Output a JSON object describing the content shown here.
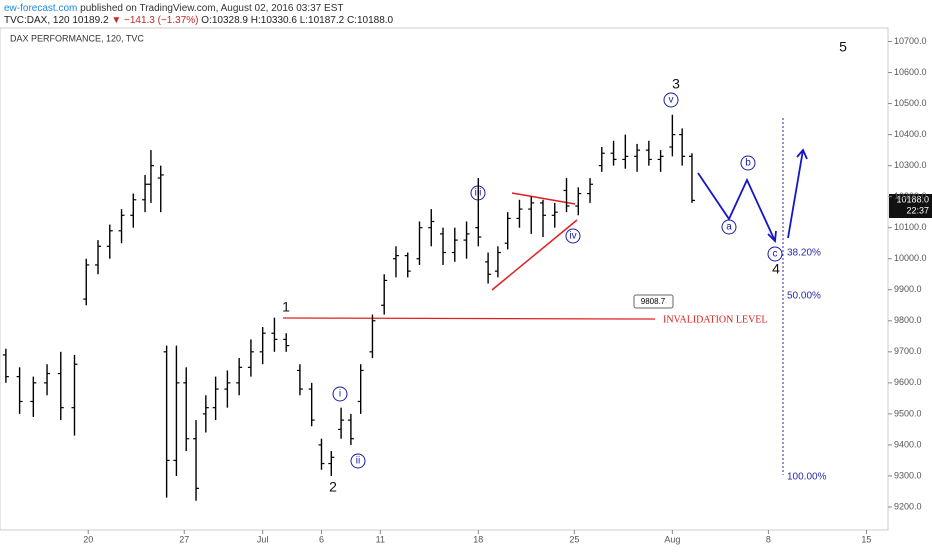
{
  "header": {
    "publisher": "ew-forecast.com",
    "published": "published on TradingView.com, August 02, 2016 03:37 EST",
    "symbol": "TVC:DAX, 120",
    "last": "10189.2",
    "change": "▼ −141.3 (−1.37%)",
    "ohlc": "O:10328.9 H:10330.6 L:10187.2 C:10188.0"
  },
  "chart_data": {
    "type": "ohlc",
    "title": "DAX PERFORMANCE, 120, TVC",
    "color": "#000000",
    "x": [
      0.3,
      1.0,
      1.7,
      2.4,
      3.1,
      3.8,
      4.4,
      5.0,
      5.6,
      6.2,
      6.8,
      7.4,
      7.7,
      8.2,
      8.5,
      9.0,
      9.5,
      10.0,
      10.5,
      11.0,
      11.6,
      12.2,
      12.8,
      13.4,
      14.0,
      14.6,
      15.3,
      15.9,
      16.4,
      16.9,
      17.4,
      17.9,
      18.4,
      19.0,
      19.6,
      20.2,
      20.8,
      21.4,
      22.0,
      22.6,
      23.2,
      23.8,
      24.4,
      24.9,
      25.4,
      25.9,
      26.5,
      27.1,
      27.7,
      28.3,
      28.9,
      29.5,
      30.1,
      30.7,
      31.3,
      31.9,
      32.5,
      33.1,
      33.7,
      34.3,
      34.8,
      35.3
    ],
    "open": [
      9690,
      9620,
      9540,
      9600,
      9630,
      9520,
      9870,
      9980,
      10040,
      10090,
      10140,
      10190,
      10240,
      10260,
      9700,
      9350,
      9600,
      9420,
      9500,
      9520,
      9580,
      9600,
      9650,
      9700,
      9760,
      9740,
      9640,
      9580,
      9400,
      9340,
      9450,
      9480,
      9540,
      9700,
      9850,
      10000,
      10010,
      10000,
      10100,
      10080,
      10020,
      10060,
      10100,
      9990,
      9960,
      10050,
      10130,
      10160,
      10180,
      10140,
      10220,
      10170,
      10210,
      10300,
      10340,
      10320,
      10330,
      10350,
      10320,
      10360,
      10400,
      10330
    ],
    "high": [
      9710,
      9650,
      9620,
      9660,
      9700,
      9690,
      10000,
      10060,
      10110,
      10160,
      10210,
      10270,
      10350,
      10300,
      9720,
      9720,
      9650,
      9480,
      9560,
      9620,
      9640,
      9680,
      9740,
      9780,
      9810,
      9760,
      9660,
      9600,
      9420,
      9380,
      9520,
      9500,
      9660,
      9820,
      9950,
      10040,
      10020,
      10120,
      10160,
      10100,
      10100,
      10120,
      10260,
      10020,
      10040,
      10150,
      10190,
      10200,
      10190,
      10180,
      10260,
      10230,
      10260,
      10360,
      10380,
      10400,
      10370,
      10380,
      10350,
      10464,
      10420,
      10340
    ],
    "low": [
      9600,
      9500,
      9490,
      9560,
      9480,
      9430,
      9850,
      9950,
      10000,
      10050,
      10100,
      10150,
      10180,
      10150,
      9230,
      9300,
      9380,
      9220,
      9440,
      9480,
      9520,
      9560,
      9620,
      9660,
      9700,
      9700,
      9560,
      9460,
      9320,
      9300,
      9420,
      9400,
      9500,
      9680,
      9820,
      9940,
      9940,
      9980,
      10040,
      9980,
      9990,
      10000,
      10040,
      9920,
      9940,
      10030,
      10100,
      10080,
      10070,
      10100,
      10150,
      10140,
      10180,
      10280,
      10300,
      10290,
      10280,
      10300,
      10280,
      10330,
      10300,
      10180
    ],
    "close": [
      9620,
      9540,
      9600,
      9630,
      9520,
      9660,
      9980,
      10040,
      10090,
      10140,
      10190,
      10240,
      10300,
      10270,
      9350,
      9600,
      9420,
      9260,
      9520,
      9580,
      9600,
      9650,
      9700,
      9760,
      9740,
      9720,
      9580,
      9480,
      9340,
      9360,
      9480,
      9420,
      9640,
      9800,
      9930,
      10010,
      9960,
      10100,
      10120,
      10020,
      10060,
      10080,
      10070,
      9950,
      10020,
      10130,
      10160,
      10180,
      10140,
      10150,
      10170,
      10210,
      10240,
      10340,
      10320,
      10330,
      10350,
      10320,
      10330,
      10400,
      10330,
      10188
    ],
    "xlim": [
      0,
      45.3
    ],
    "xticks": [
      {
        "value": 4.5,
        "label": "20"
      },
      {
        "value": 9.4,
        "label": "27"
      },
      {
        "value": 13.4,
        "label": "Jul"
      },
      {
        "value": 16.4,
        "label": "6"
      },
      {
        "value": 19.4,
        "label": "11"
      },
      {
        "value": 24.4,
        "label": "18"
      },
      {
        "value": 29.3,
        "label": "25"
      },
      {
        "value": 34.3,
        "label": "Aug"
      },
      {
        "value": 39.2,
        "label": "8"
      },
      {
        "value": 44.2,
        "label": "15"
      }
    ],
    "ylim": [
      9100,
      10750
    ],
    "yticks": [
      {
        "value": 9200,
        "label": "9200.0"
      },
      {
        "value": 9300,
        "label": "9300.0"
      },
      {
        "value": 9400,
        "label": "9400.0"
      },
      {
        "value": 9500,
        "label": "9500.0"
      },
      {
        "value": 9600,
        "label": "9600.0"
      },
      {
        "value": 9700,
        "label": "9700.0"
      },
      {
        "value": 9800,
        "label": "9800.0"
      },
      {
        "value": 9900,
        "label": "9900.0"
      },
      {
        "value": 10000,
        "label": "10000.0"
      },
      {
        "value": 10100,
        "label": "10100.0"
      },
      {
        "value": 10200,
        "label": "10200.0"
      },
      {
        "value": 10300,
        "label": "10300.0"
      },
      {
        "value": 10400,
        "label": "10400.0"
      },
      {
        "value": 10500,
        "label": "10500.0"
      },
      {
        "value": 10600,
        "label": "10600.0"
      },
      {
        "value": 10700,
        "label": "10700.0"
      }
    ],
    "annotations": {
      "w1": "1",
      "w2": "2",
      "w3": "3",
      "w4": "4",
      "w5": "5",
      "wi": "i",
      "wii": "ii",
      "wiii": "iii",
      "wiv": "iv",
      "wv": "v",
      "wa": "a",
      "wb": "b",
      "wc": "c",
      "fib382": "38.20%",
      "fib50": "50.00%",
      "fib100": "100.00%",
      "invalidation": "INVALIDATION LEVEL",
      "invalidation_price": "9808.7",
      "price_tag": "10188.0",
      "time_tag": "22:37"
    }
  }
}
